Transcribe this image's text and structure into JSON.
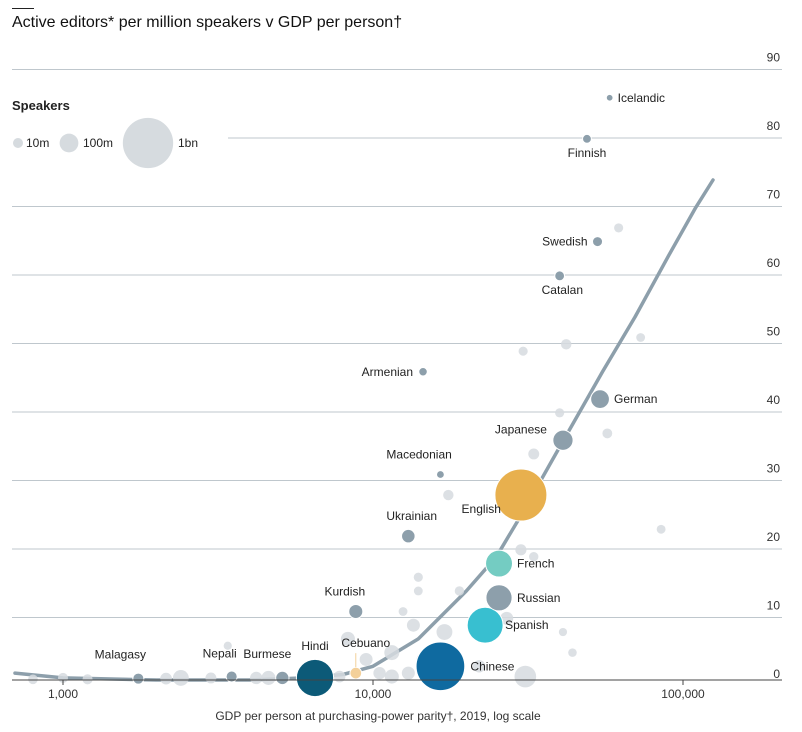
{
  "chart_data": {
    "type": "scatter",
    "title": "Active editors* per million speakers v GDP per person†",
    "xlabel": "GDP per person at purchasing-power parity†, 2019, log scale",
    "ylabel": "",
    "x_scale": "log",
    "xlim": [
      700,
      150000
    ],
    "ylim": [
      0,
      90
    ],
    "x_ticks": [
      1000,
      10000,
      100000
    ],
    "x_tick_labels": [
      "1,000",
      "10,000",
      "100,000"
    ],
    "y_ticks": [
      0,
      10,
      20,
      30,
      40,
      50,
      60,
      70,
      80,
      90
    ],
    "grid": true,
    "legend": {
      "title": "Speakers",
      "placement": "top-left",
      "entries": [
        {
          "label": "10m",
          "speakers_m": 10
        },
        {
          "label": "100m",
          "speakers_m": 100
        },
        {
          "label": "1bn",
          "speakers_m": 1000
        }
      ]
    },
    "colors": {
      "highlight": "#8d9fab",
      "background": "#d6dbdf",
      "trend": "#8d9fab",
      "English": "#e8b04e",
      "Chinese": "#0f6aa0",
      "Hindi": "#0c5a78",
      "Spanish": "#38bfd0",
      "French": "#74ccc2",
      "Cebuano": "#f3d09a"
    },
    "trend_line": {
      "x": [
        700,
        1000,
        2000,
        4000,
        6000,
        8000,
        10000,
        14000,
        20000,
        25000,
        30000,
        40000,
        55000,
        70000,
        90000,
        110000,
        125000
      ],
      "y": [
        1,
        0.3,
        0,
        0,
        0.3,
        0.8,
        2,
        6,
        13,
        18,
        24,
        34,
        45,
        53,
        62,
        69,
        73
      ]
    },
    "labeled_points": [
      {
        "name": "Icelandic",
        "x": 58000,
        "y": 85,
        "speakers_m": 0.35
      },
      {
        "name": "Finnish",
        "x": 49000,
        "y": 79,
        "speakers_m": 5
      },
      {
        "name": "Swedish",
        "x": 53000,
        "y": 64,
        "speakers_m": 10
      },
      {
        "name": "Catalan",
        "x": 40000,
        "y": 59,
        "speakers_m": 9
      },
      {
        "name": "Armenian",
        "x": 14500,
        "y": 45,
        "speakers_m": 4
      },
      {
        "name": "German",
        "x": 54000,
        "y": 41,
        "speakers_m": 100
      },
      {
        "name": "Japanese",
        "x": 41000,
        "y": 35,
        "speakers_m": 125
      },
      {
        "name": "Macedonian",
        "x": 16500,
        "y": 30,
        "speakers_m": 2
      },
      {
        "name": "English",
        "x": 30000,
        "y": 27,
        "speakers_m": 1300
      },
      {
        "name": "Ukrainian",
        "x": 13000,
        "y": 21,
        "speakers_m": 35
      },
      {
        "name": "French",
        "x": 25500,
        "y": 17,
        "speakers_m": 270
      },
      {
        "name": "Russian",
        "x": 25500,
        "y": 12,
        "speakers_m": 250
      },
      {
        "name": "Kurdish",
        "x": 8800,
        "y": 10,
        "speakers_m": 40
      },
      {
        "name": "Spanish",
        "x": 23000,
        "y": 8,
        "speakers_m": 550
      },
      {
        "name": "Cebuano",
        "x": 8800,
        "y": 1,
        "speakers_m": 20
      },
      {
        "name": "Chinese",
        "x": 16500,
        "y": 2,
        "speakers_m": 1120
      },
      {
        "name": "Hindi",
        "x": 6500,
        "y": 0.3,
        "speakers_m": 600
      },
      {
        "name": "Burmese",
        "x": 5100,
        "y": 0.3,
        "speakers_m": 33
      },
      {
        "name": "Nepali",
        "x": 3500,
        "y": 0.5,
        "speakers_m": 16
      },
      {
        "name": "Malagasy",
        "x": 1750,
        "y": 0.2,
        "speakers_m": 16
      }
    ],
    "other_points": [
      {
        "x": 73000,
        "y": 50,
        "speakers_m": 5
      },
      {
        "x": 42000,
        "y": 49,
        "speakers_m": 12
      },
      {
        "x": 30500,
        "y": 48,
        "speakers_m": 6
      },
      {
        "x": 62000,
        "y": 66,
        "speakers_m": 6
      },
      {
        "x": 40000,
        "y": 39,
        "speakers_m": 6
      },
      {
        "x": 57000,
        "y": 36,
        "speakers_m": 9
      },
      {
        "x": 33000,
        "y": 33,
        "speakers_m": 15
      },
      {
        "x": 17500,
        "y": 27,
        "speakers_m": 12
      },
      {
        "x": 85000,
        "y": 22,
        "speakers_m": 5
      },
      {
        "x": 30000,
        "y": 19,
        "speakers_m": 16
      },
      {
        "x": 33000,
        "y": 18,
        "speakers_m": 7
      },
      {
        "x": 14000,
        "y": 15,
        "speakers_m": 6
      },
      {
        "x": 19000,
        "y": 13,
        "speakers_m": 7
      },
      {
        "x": 14000,
        "y": 13,
        "speakers_m": 5
      },
      {
        "x": 12500,
        "y": 10,
        "speakers_m": 5
      },
      {
        "x": 13500,
        "y": 8,
        "speakers_m": 30
      },
      {
        "x": 27000,
        "y": 9,
        "speakers_m": 30
      },
      {
        "x": 41000,
        "y": 7,
        "speakers_m": 3
      },
      {
        "x": 17000,
        "y": 7,
        "speakers_m": 60
      },
      {
        "x": 8300,
        "y": 6,
        "speakers_m": 40
      },
      {
        "x": 44000,
        "y": 4,
        "speakers_m": 4
      },
      {
        "x": 3400,
        "y": 5,
        "speakers_m": 3
      },
      {
        "x": 11500,
        "y": 4,
        "speakers_m": 50
      },
      {
        "x": 9500,
        "y": 3,
        "speakers_m": 30
      },
      {
        "x": 14500,
        "y": 3,
        "speakers_m": 30
      },
      {
        "x": 22000,
        "y": 2,
        "speakers_m": 25
      },
      {
        "x": 31000,
        "y": 0.5,
        "speakers_m": 150
      },
      {
        "x": 11500,
        "y": 0.5,
        "speakers_m": 40
      },
      {
        "x": 10500,
        "y": 1,
        "speakers_m": 25
      },
      {
        "x": 13000,
        "y": 1,
        "speakers_m": 30
      },
      {
        "x": 7800,
        "y": 0.5,
        "speakers_m": 20
      },
      {
        "x": 4600,
        "y": 0.3,
        "speakers_m": 40
      },
      {
        "x": 4200,
        "y": 0.3,
        "speakers_m": 25
      },
      {
        "x": 2400,
        "y": 0.3,
        "speakers_m": 60
      },
      {
        "x": 2150,
        "y": 0.2,
        "speakers_m": 20
      },
      {
        "x": 3000,
        "y": 0.3,
        "speakers_m": 15
      },
      {
        "x": 1000,
        "y": 0.3,
        "speakers_m": 10
      },
      {
        "x": 1200,
        "y": 0.1,
        "speakers_m": 10
      },
      {
        "x": 800,
        "y": 0.1,
        "speakers_m": 8
      }
    ]
  }
}
